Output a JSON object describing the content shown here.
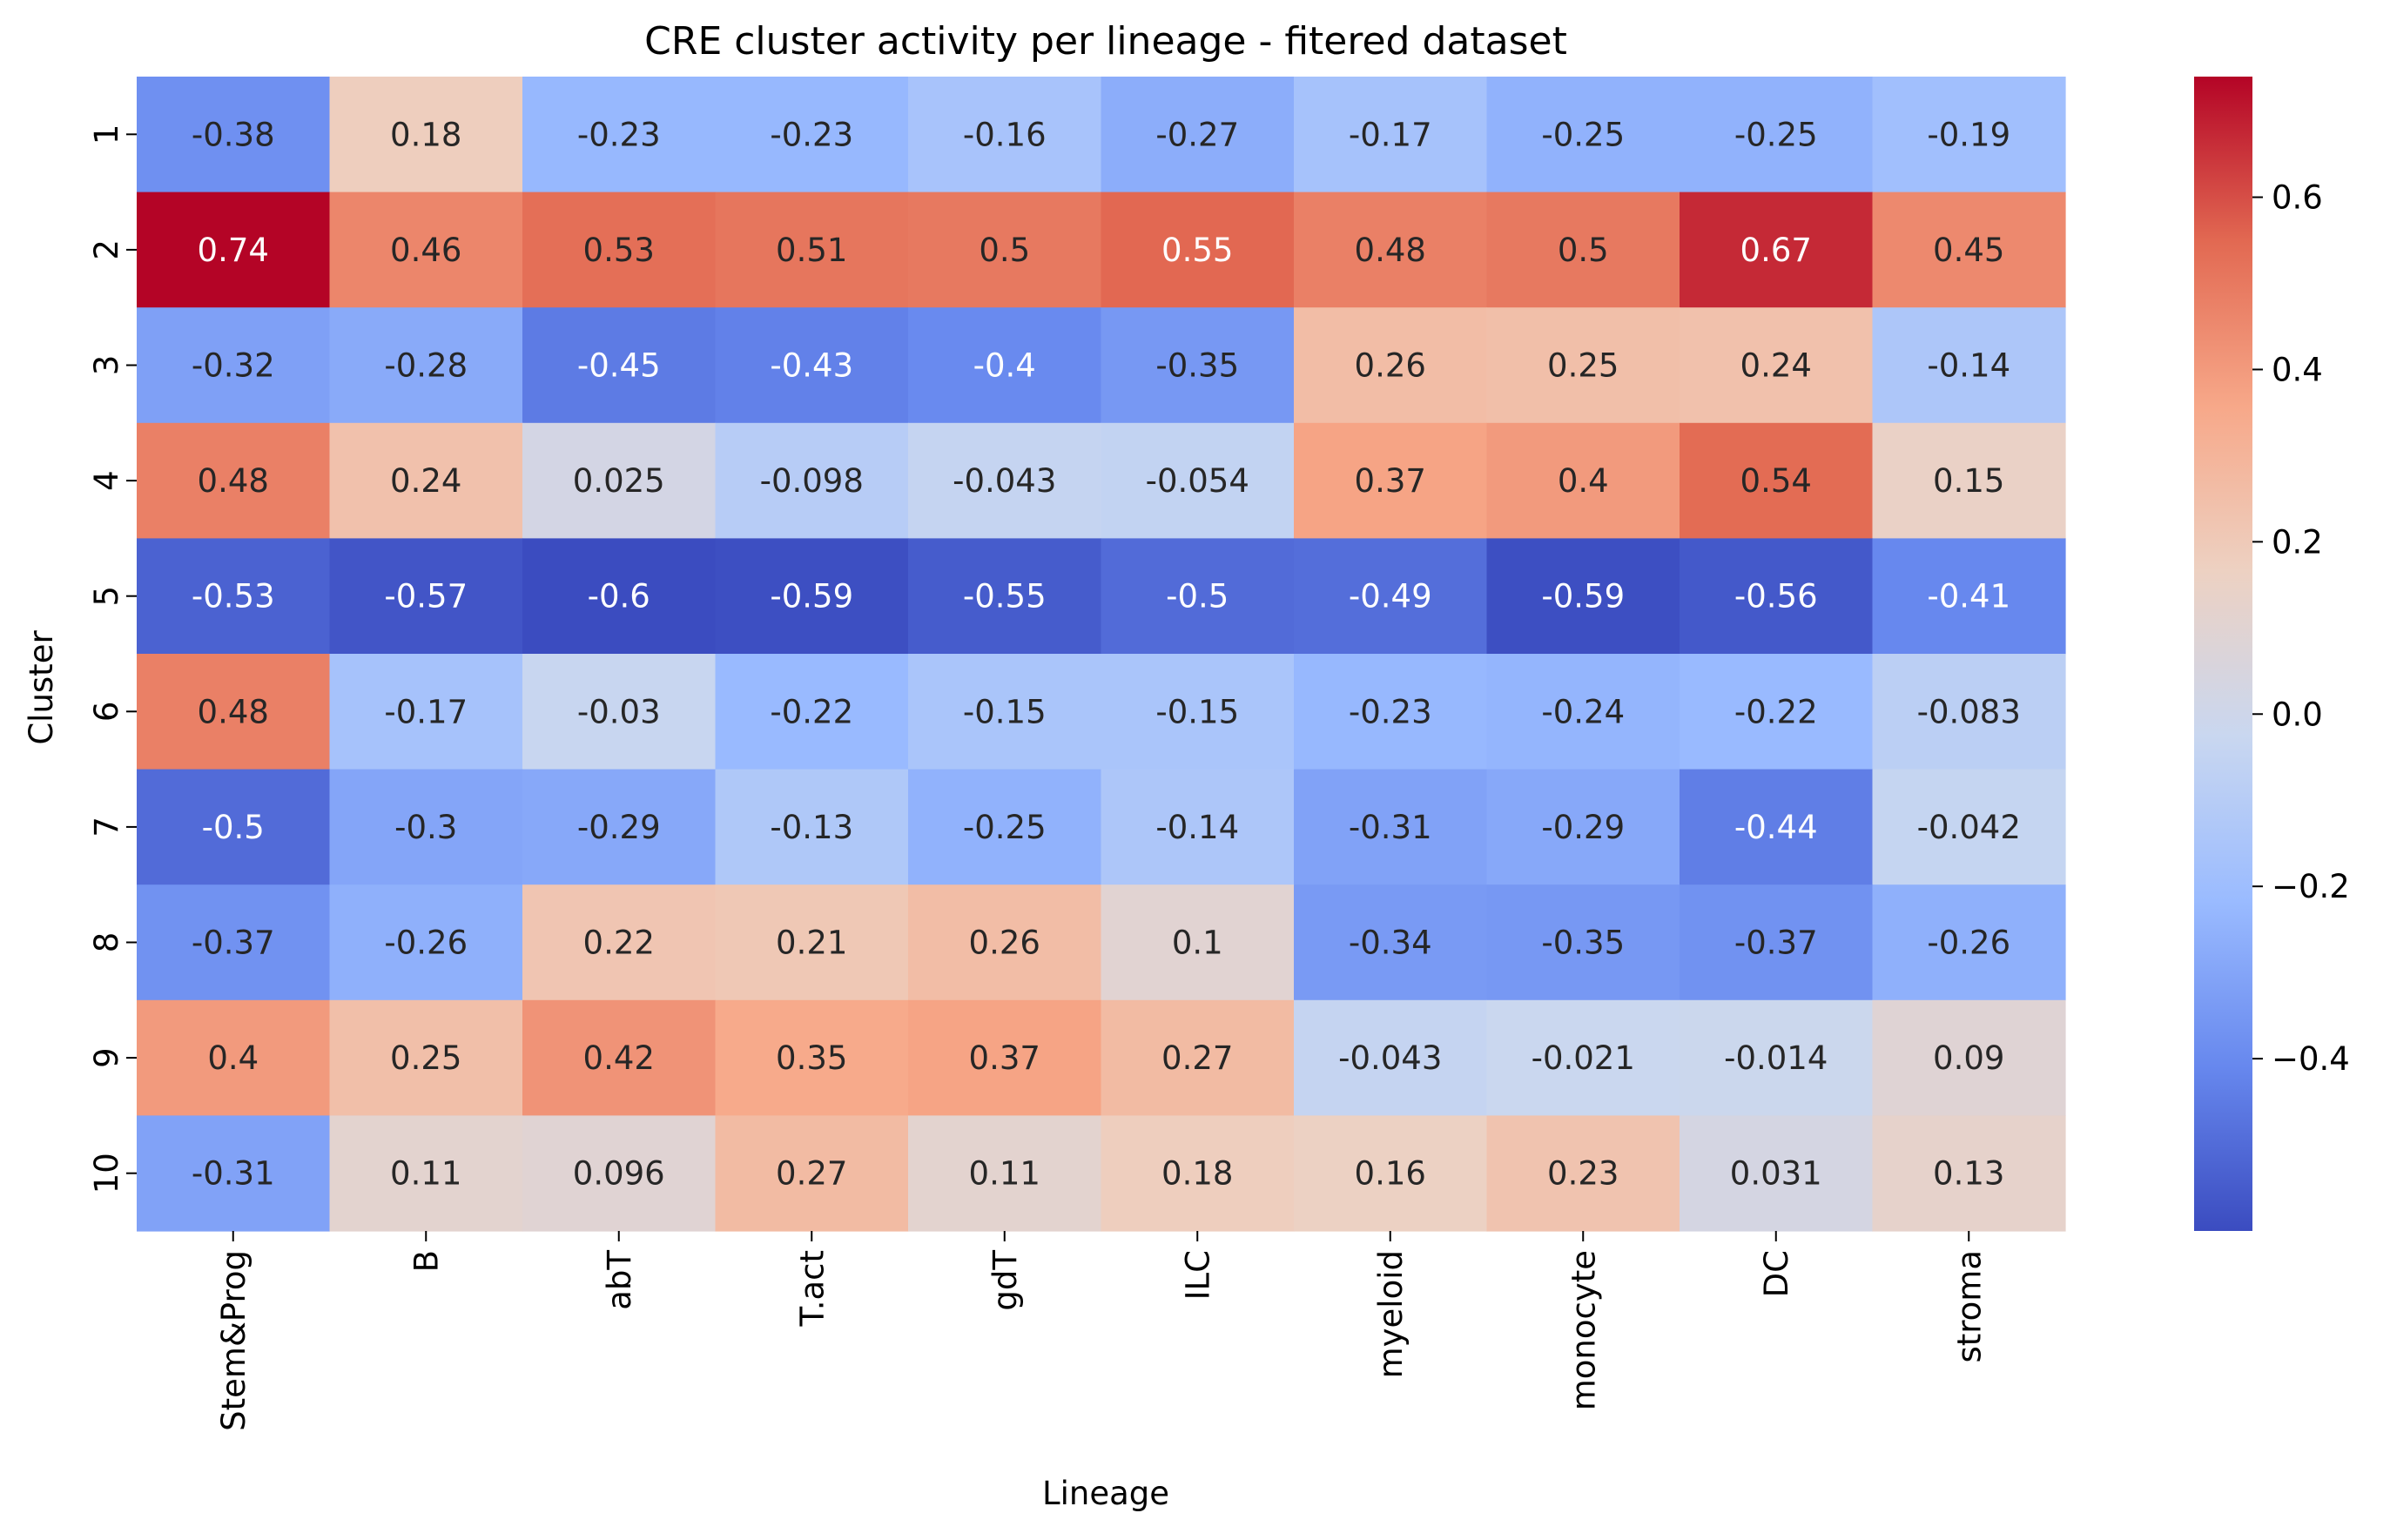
{
  "chart_data": {
    "type": "heatmap",
    "title": "CRE cluster activity per lineage - fitered dataset",
    "xlabel": "Lineage",
    "ylabel": "Cluster",
    "x_categories": [
      "Stem&Prog",
      "B",
      "abT",
      "T.act",
      "gdT",
      "ILC",
      "myeloid",
      "monocyte",
      "DC",
      "stroma"
    ],
    "y_categories": [
      "1",
      "2",
      "3",
      "4",
      "5",
      "6",
      "7",
      "8",
      "9",
      "10"
    ],
    "values": [
      [
        -0.38,
        0.18,
        -0.23,
        -0.23,
        -0.16,
        -0.27,
        -0.17,
        -0.25,
        -0.25,
        -0.19
      ],
      [
        0.74,
        0.46,
        0.53,
        0.51,
        0.5,
        0.55,
        0.48,
        0.5,
        0.67,
        0.45
      ],
      [
        -0.32,
        -0.28,
        -0.45,
        -0.43,
        -0.4,
        -0.35,
        0.26,
        0.25,
        0.24,
        -0.14
      ],
      [
        0.48,
        0.24,
        0.025,
        -0.098,
        -0.043,
        -0.054,
        0.37,
        0.4,
        0.54,
        0.15
      ],
      [
        -0.53,
        -0.57,
        -0.6,
        -0.59,
        -0.55,
        -0.5,
        -0.49,
        -0.59,
        -0.56,
        -0.41
      ],
      [
        0.48,
        -0.17,
        -0.03,
        -0.22,
        -0.15,
        -0.15,
        -0.23,
        -0.24,
        -0.22,
        -0.083
      ],
      [
        -0.5,
        -0.3,
        -0.29,
        -0.13,
        -0.25,
        -0.14,
        -0.31,
        -0.29,
        -0.44,
        -0.042
      ],
      [
        -0.37,
        -0.26,
        0.22,
        0.21,
        0.26,
        0.1,
        -0.34,
        -0.35,
        -0.37,
        -0.26
      ],
      [
        0.4,
        0.25,
        0.42,
        0.35,
        0.37,
        0.27,
        -0.043,
        -0.021,
        -0.014,
        0.09
      ],
      [
        -0.31,
        0.11,
        0.096,
        0.27,
        0.11,
        0.18,
        0.16,
        0.23,
        0.031,
        0.13
      ]
    ],
    "cell_labels": [
      [
        "-0.38",
        "0.18",
        "-0.23",
        "-0.23",
        "-0.16",
        "-0.27",
        "-0.17",
        "-0.25",
        "-0.25",
        "-0.19"
      ],
      [
        "0.74",
        "0.46",
        "0.53",
        "0.51",
        "0.5",
        "0.55",
        "0.48",
        "0.5",
        "0.67",
        "0.45"
      ],
      [
        "-0.32",
        "-0.28",
        "-0.45",
        "-0.43",
        "-0.4",
        "-0.35",
        "0.26",
        "0.25",
        "0.24",
        "-0.14"
      ],
      [
        "0.48",
        "0.24",
        "0.025",
        "-0.098",
        "-0.043",
        "-0.054",
        "0.37",
        "0.4",
        "0.54",
        "0.15"
      ],
      [
        "-0.53",
        "-0.57",
        "-0.6",
        "-0.59",
        "-0.55",
        "-0.5",
        "-0.49",
        "-0.59",
        "-0.56",
        "-0.41"
      ],
      [
        "0.48",
        "-0.17",
        "-0.03",
        "-0.22",
        "-0.15",
        "-0.15",
        "-0.23",
        "-0.24",
        "-0.22",
        "-0.083"
      ],
      [
        "-0.5",
        "-0.3",
        "-0.29",
        "-0.13",
        "-0.25",
        "-0.14",
        "-0.31",
        "-0.29",
        "-0.44",
        "-0.042"
      ],
      [
        "-0.37",
        "-0.26",
        "0.22",
        "0.21",
        "0.26",
        "0.1",
        "-0.34",
        "-0.35",
        "-0.37",
        "-0.26"
      ],
      [
        "0.4",
        "0.25",
        "0.42",
        "0.35",
        "0.37",
        "0.27",
        "-0.043",
        "-0.021",
        "-0.014",
        "0.09"
      ],
      [
        "-0.31",
        "0.11",
        "0.096",
        "0.27",
        "0.11",
        "0.18",
        "0.16",
        "0.23",
        "0.031",
        "0.13"
      ]
    ],
    "colormap": "coolwarm",
    "colormap_stops": [
      "#3b4cc0",
      "#6788ee",
      "#9abbff",
      "#c9d7f0",
      "#edd1c2",
      "#f7a889",
      "#e26952",
      "#b40426"
    ],
    "vmin": -0.6,
    "vmax": 0.74,
    "colorbar_ticks": [
      0.6,
      0.4,
      0.2,
      0.0,
      -0.2,
      -0.4
    ],
    "colorbar_tick_labels": [
      "0.6",
      "0.4",
      "0.2",
      "0.0",
      "−0.2",
      "−0.4"
    ],
    "annotation_dark_color": "#262626",
    "annotation_light_color": "#ffffff"
  }
}
